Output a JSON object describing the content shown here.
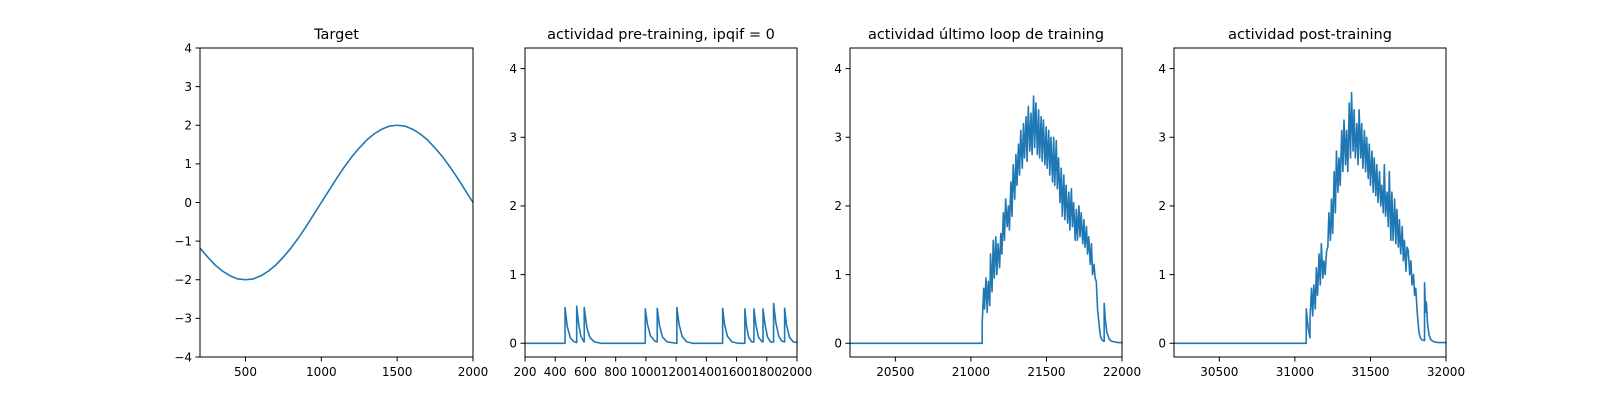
{
  "chart_data": [
    {
      "type": "line",
      "title": "Target",
      "xlabel": "",
      "ylabel": "",
      "xlim": [
        200,
        2000
      ],
      "ylim": [
        -4,
        4
      ],
      "xticks": [
        500,
        1000,
        1500,
        2000
      ],
      "yticks": [
        -4,
        -3,
        -2,
        -1,
        0,
        1,
        2,
        3,
        4
      ],
      "grid": false,
      "color": "#1f77b4",
      "series": [
        {
          "x": [
            200,
            250,
            300,
            350,
            400,
            450,
            500,
            550,
            600,
            650,
            700,
            750,
            800,
            850,
            900,
            950,
            1000,
            1050,
            1100,
            1150,
            1200,
            1250,
            1300,
            1350,
            1400,
            1450,
            1500,
            1550,
            1600,
            1650,
            1700,
            1750,
            1800,
            1850,
            1900,
            1950,
            2000
          ],
          "y": [
            -1.18,
            -1.41,
            -1.62,
            -1.78,
            -1.9,
            -1.98,
            -2.0,
            -1.98,
            -1.9,
            -1.78,
            -1.62,
            -1.41,
            -1.18,
            -0.91,
            -0.62,
            -0.31,
            0.0,
            0.31,
            0.62,
            0.91,
            1.18,
            1.41,
            1.62,
            1.78,
            1.9,
            1.98,
            2.0,
            1.98,
            1.9,
            1.78,
            1.62,
            1.41,
            1.18,
            0.91,
            0.62,
            0.31,
            0.0
          ]
        }
      ]
    },
    {
      "type": "line",
      "title": "actividad pre-training, ipqif = 0",
      "xlabel": "",
      "ylabel": "",
      "xlim": [
        200,
        2000
      ],
      "ylim": [
        -0.2,
        4.3
      ],
      "xticks": [
        200,
        400,
        600,
        800,
        1000,
        1200,
        1400,
        1600,
        1800,
        2000
      ],
      "yticks": [
        0,
        1,
        2,
        3,
        4
      ],
      "grid": false,
      "color": "#1f77b4",
      "series": [
        {
          "x": [
            200,
            465,
            465,
            480,
            500,
            520,
            540,
            542,
            542,
            555,
            570,
            590,
            592,
            592,
            610,
            630,
            660,
            700,
            996,
            996,
            1010,
            1030,
            1060,
            1075,
            1075,
            1090,
            1110,
            1140,
            1200,
            1205,
            1205,
            1220,
            1240,
            1270,
            1310,
            1508,
            1508,
            1520,
            1540,
            1570,
            1610,
            1655,
            1655,
            1665,
            1680,
            1700,
            1715,
            1715,
            1728,
            1745,
            1765,
            1775,
            1775,
            1788,
            1805,
            1825,
            1845,
            1845,
            1860,
            1880,
            1900,
            1918,
            1918,
            1930,
            1950,
            1975,
            2000
          ],
          "y": [
            0,
            0,
            0.52,
            0.24,
            0.08,
            0.03,
            0.01,
            0.01,
            0.54,
            0.28,
            0.1,
            0.02,
            0.02,
            0.52,
            0.22,
            0.08,
            0.02,
            0,
            0,
            0.5,
            0.28,
            0.11,
            0.03,
            0.02,
            0.51,
            0.26,
            0.09,
            0.02,
            0,
            0,
            0.52,
            0.27,
            0.1,
            0.02,
            0,
            0,
            0.51,
            0.28,
            0.1,
            0.02,
            0,
            0,
            0.5,
            0.26,
            0.09,
            0.02,
            0.02,
            0.5,
            0.27,
            0.09,
            0.03,
            0.02,
            0.5,
            0.28,
            0.09,
            0.02,
            0.02,
            0.58,
            0.3,
            0.1,
            0.03,
            0.02,
            0.51,
            0.27,
            0.09,
            0.02,
            0.01
          ]
        }
      ]
    },
    {
      "type": "line",
      "title": "actividad último loop de training",
      "xlabel": "",
      "ylabel": "",
      "xlim": [
        20200,
        22000
      ],
      "ylim": [
        -0.2,
        4.3
      ],
      "xticks": [
        20500,
        21000,
        21500,
        22000
      ],
      "yticks": [
        0,
        1,
        2,
        3,
        4
      ],
      "grid": false,
      "color": "#1f77b4",
      "series": [
        {
          "x": [
            20200,
            21075,
            21075,
            21085,
            21090,
            21100,
            21108,
            21115,
            21125,
            21130,
            21140,
            21148,
            21155,
            21165,
            21172,
            21180,
            21190,
            21198,
            21205,
            21215,
            21222,
            21230,
            21240,
            21248,
            21255,
            21265,
            21272,
            21280,
            21290,
            21298,
            21305,
            21315,
            21322,
            21330,
            21340,
            21348,
            21355,
            21365,
            21372,
            21380,
            21390,
            21398,
            21405,
            21415,
            21422,
            21430,
            21440,
            21448,
            21455,
            21465,
            21472,
            21480,
            21490,
            21498,
            21505,
            21515,
            21522,
            21530,
            21540,
            21548,
            21555,
            21565,
            21572,
            21580,
            21590,
            21598,
            21605,
            21615,
            21622,
            21630,
            21640,
            21648,
            21655,
            21665,
            21672,
            21680,
            21690,
            21698,
            21705,
            21715,
            21722,
            21730,
            21740,
            21748,
            21755,
            21765,
            21772,
            21780,
            21790,
            21798,
            21805,
            21815,
            21822,
            21830,
            21838,
            21845,
            21852,
            21858,
            21865,
            21872,
            21880,
            21882,
            21882,
            21890,
            21900,
            21915,
            21930,
            21950,
            21975,
            22000
          ],
          "y": [
            0,
            0,
            0.3,
            0.8,
            0.5,
            0.95,
            0.45,
            0.9,
            0.55,
            1.3,
            0.75,
            1.5,
            0.95,
            1.55,
            1.0,
            1.45,
            1.1,
            1.6,
            1.3,
            1.9,
            1.5,
            2.1,
            1.7,
            2.0,
            1.65,
            2.35,
            1.85,
            2.6,
            2.1,
            2.75,
            2.3,
            2.9,
            2.45,
            3.1,
            2.55,
            3.2,
            2.7,
            3.3,
            2.65,
            3.45,
            2.8,
            3.35,
            2.75,
            3.6,
            2.85,
            3.5,
            2.75,
            3.4,
            2.7,
            3.3,
            2.65,
            3.25,
            2.6,
            3.15,
            2.55,
            3.1,
            2.45,
            3.0,
            2.35,
            3.0,
            2.3,
            2.95,
            2.25,
            2.7,
            2.05,
            2.55,
            1.85,
            2.45,
            1.8,
            2.3,
            1.75,
            2.2,
            1.65,
            2.25,
            1.7,
            2.05,
            1.5,
            1.95,
            1.5,
            2.0,
            1.55,
            1.9,
            1.45,
            1.8,
            1.4,
            1.7,
            1.3,
            1.55,
            1.15,
            1.45,
            1.0,
            1.15,
            0.95,
            0.9,
            0.5,
            0.35,
            0.2,
            0.1,
            0.06,
            0.04,
            0.03,
            0.03,
            0.58,
            0.33,
            0.16,
            0.06,
            0.03,
            0.02,
            0.01,
            0.01
          ]
        }
      ]
    },
    {
      "type": "line",
      "title": "actividad post-training",
      "xlabel": "",
      "ylabel": "",
      "xlim": [
        30200,
        32000
      ],
      "ylim": [
        -0.2,
        4.3
      ],
      "xticks": [
        30500,
        31000,
        31500,
        32000
      ],
      "yticks": [
        0,
        1,
        2,
        3,
        4
      ],
      "grid": false,
      "color": "#1f77b4",
      "series": [
        {
          "x": [
            30200,
            31075,
            31075,
            31088,
            31100,
            31100,
            31110,
            31118,
            31125,
            31135,
            31142,
            31150,
            31160,
            31168,
            31175,
            31185,
            31192,
            31200,
            31210,
            31218,
            31225,
            31235,
            31242,
            31250,
            31260,
            31268,
            31275,
            31285,
            31292,
            31300,
            31310,
            31318,
            31325,
            31335,
            31342,
            31350,
            31360,
            31368,
            31375,
            31385,
            31392,
            31400,
            31410,
            31418,
            31425,
            31435,
            31442,
            31450,
            31460,
            31468,
            31475,
            31485,
            31492,
            31500,
            31510,
            31518,
            31525,
            31535,
            31542,
            31550,
            31560,
            31568,
            31575,
            31585,
            31592,
            31600,
            31610,
            31618,
            31625,
            31635,
            31642,
            31650,
            31660,
            31668,
            31675,
            31685,
            31692,
            31700,
            31710,
            31718,
            31725,
            31735,
            31742,
            31750,
            31760,
            31768,
            31775,
            31785,
            31792,
            31800,
            31808,
            31815,
            31822,
            31830,
            31840,
            31855,
            31858,
            31858,
            31865,
            31870,
            31878,
            31888,
            31900,
            31920,
            31950,
            31975,
            32000
          ],
          "y": [
            0,
            0,
            0.5,
            0.22,
            0.08,
            0.35,
            0.8,
            0.4,
            0.85,
            0.5,
            1.1,
            0.7,
            1.3,
            0.85,
            1.45,
            0.95,
            1.2,
            1.0,
            1.35,
            1.4,
            1.9,
            1.5,
            2.1,
            1.6,
            2.5,
            1.9,
            2.8,
            2.2,
            2.7,
            2.3,
            3.1,
            2.5,
            3.25,
            2.6,
            3.1,
            2.5,
            3.5,
            2.7,
            3.65,
            2.8,
            3.4,
            2.7,
            3.2,
            2.6,
            3.4,
            2.7,
            3.2,
            2.55,
            3.1,
            2.5,
            3.0,
            2.4,
            2.9,
            2.3,
            2.8,
            2.2,
            2.7,
            2.15,
            2.6,
            2.05,
            2.5,
            2.0,
            2.3,
            1.9,
            2.6,
            1.85,
            2.2,
            1.7,
            2.5,
            1.5,
            2.2,
            1.5,
            2.1,
            1.45,
            1.95,
            1.4,
            1.8,
            1.3,
            1.7,
            1.2,
            1.5,
            1.05,
            1.4,
            1.35,
            1.0,
            1.2,
            0.85,
            1.0,
            0.7,
            0.8,
            0.5,
            0.3,
            0.15,
            0.08,
            0.05,
            0.04,
            0.04,
            0.88,
            0.45,
            0.6,
            0.28,
            0.12,
            0.05,
            0.02,
            0.01,
            0.01,
            0.01
          ]
        }
      ]
    }
  ]
}
